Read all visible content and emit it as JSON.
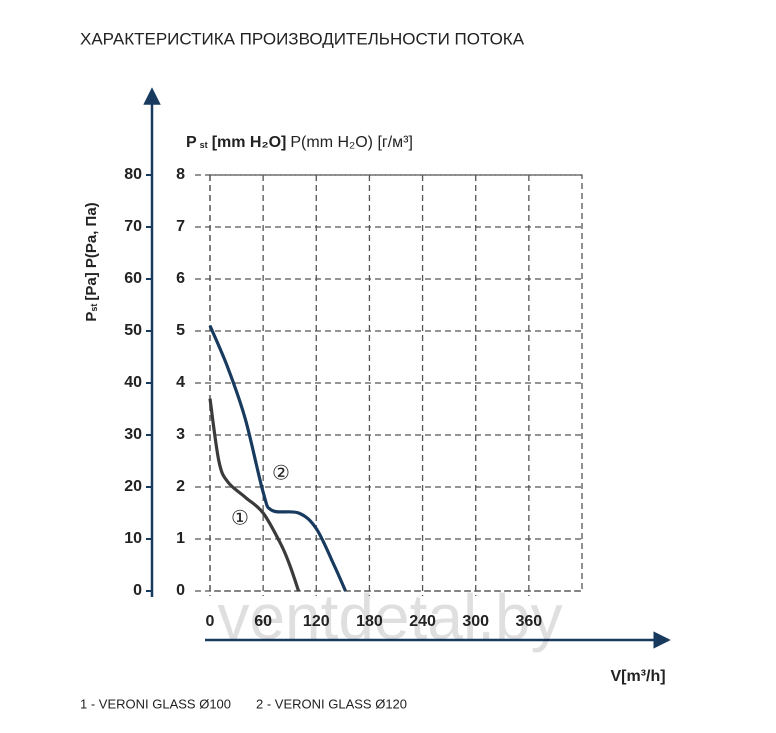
{
  "chart_data": {
    "type": "line",
    "title": "ХАРАКТЕРИСТИКА ПРОИЗВОДИТЕЛЬНОСТИ ПОТОКА",
    "y_label": {
      "main": "P",
      "sub": "st",
      "rest": "[Pa] P(Pa, Па)"
    },
    "y2_label": {
      "main": "P",
      "sub": "st",
      "bold": "[mm H₂O]",
      "rest": "P(mm H₂O) [г/м³]"
    },
    "x_label": "V[m³/h]",
    "xlim": [
      0,
      420
    ],
    "xticks": [
      0,
      60,
      120,
      180,
      240,
      300,
      360
    ],
    "ylim": [
      0,
      80
    ],
    "yticks": [
      0,
      10,
      20,
      30,
      40,
      50,
      60,
      70,
      80
    ],
    "y2lim": [
      0,
      8
    ],
    "y2ticks": [
      0,
      1,
      2,
      3,
      4,
      5,
      6,
      7,
      8
    ],
    "grid": true,
    "series": [
      {
        "name": "1 - VERONI GLASS Ø100",
        "tag": "①",
        "color": "#3b3b3d",
        "x": [
          0,
          10,
          20,
          40,
          60,
          80,
          90,
          100
        ],
        "values": [
          37,
          25,
          21,
          18,
          15,
          9,
          5,
          0
        ]
      },
      {
        "name": "2 - VERONI GLASS Ø120",
        "tag": "②",
        "color": "#173a5e",
        "x": [
          0,
          20,
          40,
          60,
          70,
          100,
          120,
          140,
          153
        ],
        "values": [
          51,
          43,
          33,
          19,
          15.5,
          15,
          12,
          5,
          0
        ]
      }
    ],
    "watermark": "ventdetal.by"
  }
}
